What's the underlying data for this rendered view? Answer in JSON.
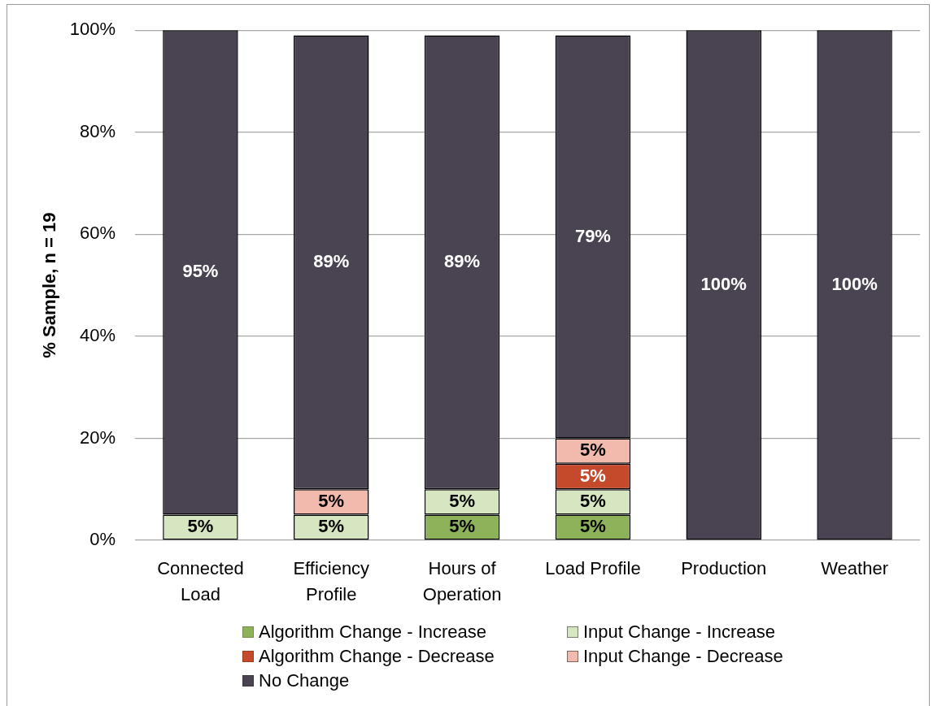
{
  "chart_data": {
    "type": "bar",
    "stacked": true,
    "categories": [
      "Connected Load",
      "Efficiency Profile",
      "Hours of Operation",
      "Load Profile",
      "Production",
      "Weather"
    ],
    "ylabel": "% Sample, n = 19",
    "ylim": [
      0,
      100
    ],
    "yticks": [
      {
        "value": 0,
        "label": "0%"
      },
      {
        "value": 20,
        "label": "20%"
      },
      {
        "value": 40,
        "label": "40%"
      },
      {
        "value": 60,
        "label": "60%"
      },
      {
        "value": 80,
        "label": "80%"
      },
      {
        "value": 100,
        "label": "100%"
      }
    ],
    "grid": "y",
    "legend": "bottom",
    "series": [
      {
        "name": "Algorithm Change - Increase",
        "color": "#8db25a",
        "values": [
          null,
          null,
          5,
          5,
          null,
          null
        ],
        "value_labels": [
          null,
          null,
          "5%",
          "5%",
          null,
          null
        ]
      },
      {
        "name": "Input Change - Increase",
        "color": "#d6e6c0",
        "values": [
          5,
          5,
          5,
          5,
          null,
          null
        ],
        "value_labels": [
          "5%",
          "5%",
          "5%",
          "5%",
          null,
          null
        ]
      },
      {
        "name": "Algorithm Change - Decrease",
        "color": "#c5492b",
        "values": [
          null,
          null,
          null,
          5,
          null,
          null
        ],
        "value_labels": [
          null,
          null,
          null,
          "5%",
          null,
          null
        ]
      },
      {
        "name": "Input Change - Decrease",
        "color": "#f2b9ad",
        "values": [
          null,
          5,
          null,
          5,
          null,
          null
        ],
        "value_labels": [
          null,
          "5%",
          null,
          "5%",
          null,
          null
        ]
      },
      {
        "name": "No Change",
        "color": "#4a4452",
        "values": [
          95,
          89,
          89,
          79,
          100,
          100
        ],
        "value_labels": [
          "95%",
          "89%",
          "89%",
          "79%",
          "100%",
          "100%"
        ]
      }
    ]
  }
}
